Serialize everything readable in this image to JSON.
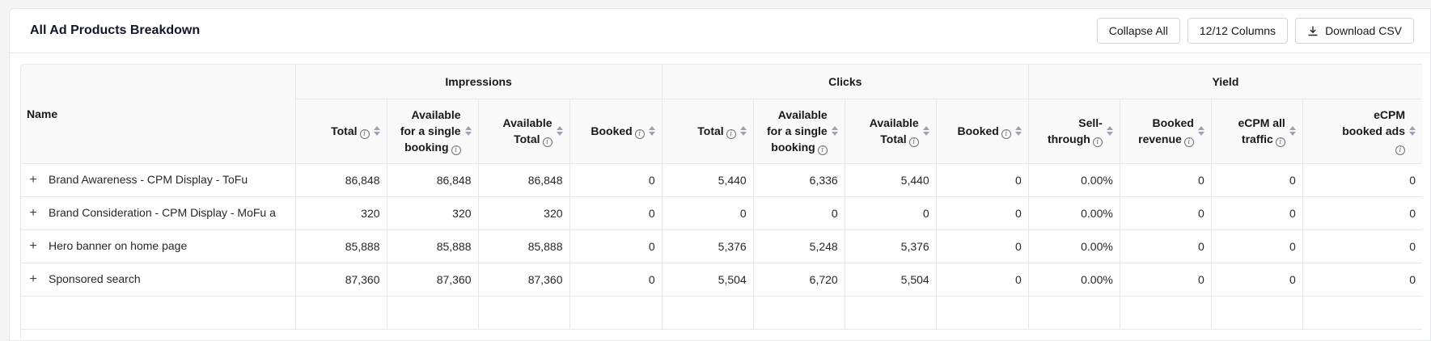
{
  "header": {
    "title": "All Ad Products Breakdown",
    "collapse_label": "Collapse All",
    "columns_label": "12/12 Columns",
    "download_label": "Download CSV"
  },
  "table": {
    "name_header": "Name",
    "groups": {
      "impressions": "Impressions",
      "clicks": "Clicks",
      "yield": "Yield"
    },
    "columns": {
      "imp_total": "Total",
      "imp_single_l1": "Available",
      "imp_single_l2": "for a single",
      "imp_single_l3": "booking",
      "imp_avail_l1": "Available",
      "imp_avail_l2": "Total",
      "imp_booked": "Booked",
      "clk_total": "Total",
      "clk_single_l1": "Available",
      "clk_single_l2": "for a single",
      "clk_single_l3": "booking",
      "clk_avail_l1": "Available",
      "clk_avail_l2": "Total",
      "clk_booked": "Booked",
      "sell_l1": "Sell-",
      "sell_l2": "through",
      "rev_l1": "Booked",
      "rev_l2": "revenue",
      "ecpm_all_l1": "eCPM all",
      "ecpm_all_l2": "traffic",
      "ecpm_booked_l1": "eCPM",
      "ecpm_booked_l2": "booked ads"
    },
    "rows": [
      {
        "name": "Brand Awareness - CPM Display - ToFu",
        "c1": "86,848",
        "c2": "86,848",
        "c3": "86,848",
        "c4": "0",
        "c5": "5,440",
        "c6": "6,336",
        "c7": "5,440",
        "c8": "0",
        "c9": "0.00%",
        "c10": "0",
        "c11": "0",
        "c12": "0"
      },
      {
        "name": "Brand Consideration - CPM Display - MoFu a",
        "c1": "320",
        "c2": "320",
        "c3": "320",
        "c4": "0",
        "c5": "0",
        "c6": "0",
        "c7": "0",
        "c8": "0",
        "c9": "0.00%",
        "c10": "0",
        "c11": "0",
        "c12": "0"
      },
      {
        "name": "Hero banner on home page",
        "c1": "85,888",
        "c2": "85,888",
        "c3": "85,888",
        "c4": "0",
        "c5": "5,376",
        "c6": "5,248",
        "c7": "5,376",
        "c8": "0",
        "c9": "0.00%",
        "c10": "0",
        "c11": "0",
        "c12": "0"
      },
      {
        "name": "Sponsored search",
        "c1": "87,360",
        "c2": "87,360",
        "c3": "87,360",
        "c4": "0",
        "c5": "5,504",
        "c6": "6,720",
        "c7": "5,504",
        "c8": "0",
        "c9": "0.00%",
        "c10": "0",
        "c11": "0",
        "c12": "0"
      }
    ]
  }
}
